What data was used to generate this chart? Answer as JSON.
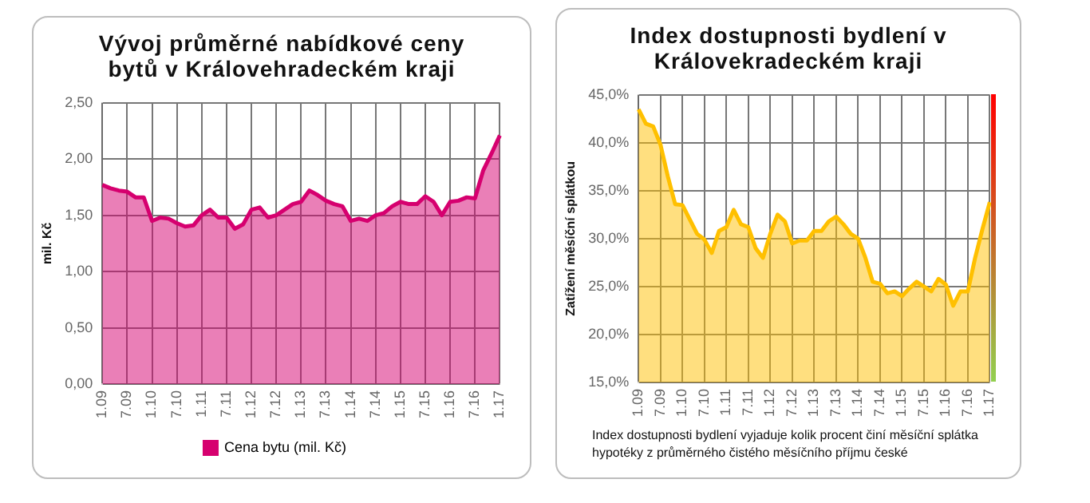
{
  "chart_data": [
    {
      "type": "area",
      "title": "Vývoj průměrné nabídkové ceny bytů v Královehradeckém kraji",
      "ylabel": "mil. Kč",
      "categories": [
        "1.09",
        null,
        null,
        "7.09",
        null,
        null,
        "1.10",
        null,
        null,
        "7.10",
        null,
        null,
        "1.11",
        null,
        null,
        "7.11",
        null,
        null,
        "1.12",
        null,
        null,
        "7.12",
        null,
        null,
        "1.13",
        null,
        null,
        "7.13",
        null,
        null,
        "1.14",
        null,
        null,
        "7.14",
        null,
        null,
        "1.15",
        null,
        null,
        "7.15",
        null,
        null,
        "1.16",
        null,
        null,
        "7.16",
        null,
        null,
        "1.17"
      ],
      "series": [
        {
          "name": "Cena bytu (mil. Kč)",
          "color": "#d6006f",
          "values": [
            1.77,
            1.74,
            1.72,
            1.71,
            1.66,
            1.66,
            1.45,
            1.48,
            1.47,
            1.43,
            1.4,
            1.41,
            1.5,
            1.55,
            1.48,
            1.48,
            1.38,
            1.42,
            1.55,
            1.57,
            1.48,
            1.5,
            1.55,
            1.6,
            1.62,
            1.72,
            1.68,
            1.63,
            1.6,
            1.58,
            1.45,
            1.47,
            1.45,
            1.5,
            1.52,
            1.58,
            1.62,
            1.6,
            1.6,
            1.67,
            1.62,
            1.5,
            1.62,
            1.63,
            1.66,
            1.65,
            1.9,
            2.05,
            2.21
          ]
        }
      ],
      "ylim": [
        0,
        2.5
      ],
      "yticks": [
        {
          "value": 0,
          "label": "0,00"
        },
        {
          "value": 0.5,
          "label": "0,50"
        },
        {
          "value": 1,
          "label": "1,00"
        },
        {
          "value": 1.5,
          "label": "1,50"
        },
        {
          "value": 2,
          "label": "2,00"
        },
        {
          "value": 2.5,
          "label": "2,50"
        }
      ],
      "grid": true,
      "legend": "bottom",
      "marker": "none"
    },
    {
      "type": "area",
      "title": "Index dostupnosti bydlení v Královekradeckém kraji",
      "ylabel": "Zatížení měsíční splátkou",
      "categories": [
        "1.09",
        null,
        null,
        "7.09",
        null,
        null,
        "1.10",
        null,
        null,
        "7.10",
        null,
        null,
        "1.11",
        null,
        null,
        "7.11",
        null,
        null,
        "1.12",
        null,
        null,
        "7.12",
        null,
        null,
        "1.13",
        null,
        null,
        "7.13",
        null,
        null,
        "1.14",
        null,
        null,
        "7.14",
        null,
        null,
        "1.15",
        null,
        null,
        "7.15",
        null,
        null,
        "1.16",
        null,
        null,
        "7.16",
        null,
        null,
        "1.17"
      ],
      "series": [
        {
          "color": "#ffc000",
          "values": [
            43.5,
            42.0,
            41.7,
            39.8,
            36.5,
            33.6,
            33.5,
            32.0,
            30.5,
            29.9,
            28.5,
            30.8,
            31.2,
            33.0,
            31.5,
            31.2,
            29.0,
            28.0,
            30.5,
            32.5,
            31.8,
            29.5,
            29.8,
            29.8,
            30.8,
            30.8,
            31.8,
            32.3,
            31.5,
            30.5,
            30.0,
            28.0,
            25.5,
            25.3,
            24.3,
            24.5,
            24.0,
            24.8,
            25.5,
            25.0,
            24.5,
            25.8,
            25.2,
            23.0,
            24.5,
            24.5,
            28.0,
            31.0,
            33.8
          ]
        }
      ],
      "ylim": [
        15,
        45
      ],
      "yticks": [
        {
          "value": 15,
          "label": "15,0%"
        },
        {
          "value": 20,
          "label": "20,0%"
        },
        {
          "value": 25,
          "label": "25,0%"
        },
        {
          "value": 30,
          "label": "30,0%"
        },
        {
          "value": 35,
          "label": "35,0%"
        },
        {
          "value": 40,
          "label": "40,0%"
        },
        {
          "value": 45,
          "label": "45,0%"
        }
      ],
      "annotations": [
        "Index dostupnosti bydlení vyjaduje kolik procent činí měsíční splátka hypotéky z průměrného čistého měsíčního příjmu české"
      ],
      "grid": true,
      "legend": false,
      "marker": "none"
    }
  ]
}
